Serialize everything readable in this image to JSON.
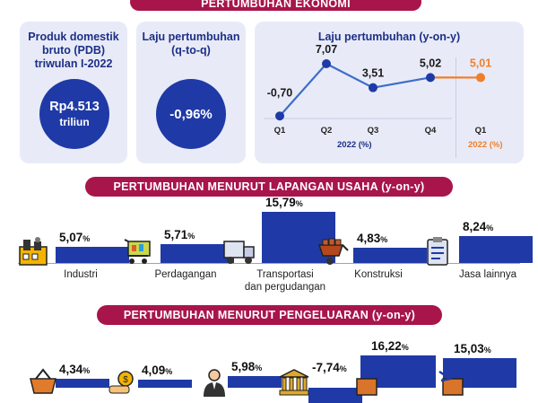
{
  "header": {
    "title": "PERTUMBUHAN EKONOMI"
  },
  "pdb": {
    "title_line1": "Produk domestik",
    "title_line2": "bruto (PDB)",
    "title_line3": "triwulan I-2022",
    "value": "Rp4.513",
    "unit": "triliun"
  },
  "qtoq": {
    "title_line1": "Laju pertumbuhan",
    "title_line2": "(q-to-q)",
    "value": "-0,96%"
  },
  "yoy": {
    "title": "Laju pertumbuhan (y-on-y)",
    "points": [
      {
        "quarter": "Q1",
        "label": "-0,70",
        "value": -0.7
      },
      {
        "quarter": "Q2",
        "label": "7,07",
        "value": 7.07
      },
      {
        "quarter": "Q3",
        "label": "3,51",
        "value": 3.51
      },
      {
        "quarter": "Q4",
        "label": "5,02",
        "value": 5.02
      },
      {
        "quarter": "Q1",
        "label": "5,01",
        "value": 5.01
      }
    ],
    "year_prev": "2022 (%)",
    "year_curr": "2022 (%)",
    "colors": {
      "line": "#3d6ec9",
      "current": "#f07f2b"
    }
  },
  "sectors": {
    "title": "PERTUMBUHAN MENURUT LAPANGAN USAHA (y-on-y)",
    "items": [
      {
        "name": "Industri",
        "name2": "",
        "value": 5.07,
        "label": "5,07",
        "icon": "factory-icon"
      },
      {
        "name": "Perdagangan",
        "name2": "",
        "value": 5.71,
        "label": "5,71",
        "icon": "shopping-cart-icon"
      },
      {
        "name": "Transportasi",
        "name2": "dan pergudangan",
        "value": 15.79,
        "label": "15,79",
        "icon": "truck-icon"
      },
      {
        "name": "Konstruksi",
        "name2": "",
        "value": 4.83,
        "label": "4,83",
        "icon": "wheelbarrow-icon"
      },
      {
        "name": "Jasa lainnya",
        "name2": "",
        "value": 8.24,
        "label": "8,24",
        "icon": "clipboard-icon"
      }
    ]
  },
  "spending": {
    "title": "PERTUMBUHAN MENURUT PENGELUARAN (y-on-y)",
    "items": [
      {
        "value": 4.34,
        "label": "4,34",
        "icon": "shopping-basket-icon"
      },
      {
        "value": 4.09,
        "label": "4,09",
        "icon": "coin-hand-icon"
      },
      {
        "value": 5.98,
        "label": "5,98",
        "icon": "official-person-icon"
      },
      {
        "value": -7.74,
        "label": "-7,74",
        "icon": "bank-building-icon"
      },
      {
        "value": 16.22,
        "label": "16,22",
        "icon": "export-box-icon"
      },
      {
        "value": 15.03,
        "label": "15,03",
        "icon": "import-box-icon"
      }
    ]
  },
  "pct_sign": "%"
}
